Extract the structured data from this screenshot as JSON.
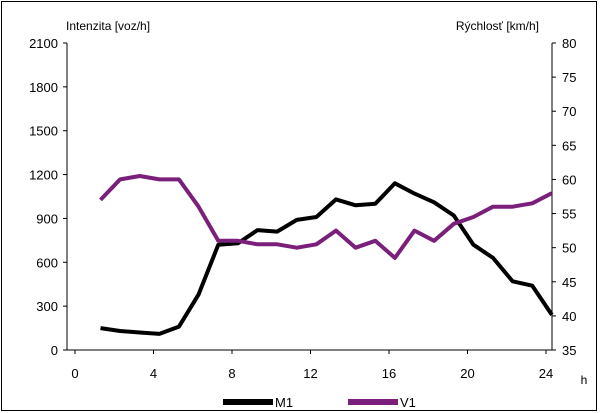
{
  "chart_data": {
    "type": "line",
    "title": "",
    "ylabel_left": "Intenzita [voz/h]",
    "ylabel_right": "Rýchlosť [km/h]",
    "xlabel": "h",
    "xlim": [
      0,
      24
    ],
    "ylim_left": [
      0,
      2100
    ],
    "ylim_right": [
      35,
      80
    ],
    "xticks": [
      0,
      4,
      8,
      12,
      16,
      20,
      24
    ],
    "yticks_left": [
      0,
      300,
      600,
      900,
      1200,
      1500,
      1800,
      2100
    ],
    "yticks_right": [
      35,
      40,
      45,
      50,
      55,
      60,
      65,
      70,
      75,
      80
    ],
    "grid": false,
    "legend_position": "bottom",
    "series": [
      {
        "name": "M1",
        "axis": "left",
        "color": "#000000",
        "x": [
          1.3,
          2.3,
          3.3,
          4.3,
          5.3,
          6.3,
          7.3,
          8.3,
          9.3,
          10.3,
          11.3,
          12.3,
          13.3,
          14.3,
          15.3,
          16.3,
          17.3,
          18.3,
          19.3,
          20.3,
          21.3,
          22.3,
          23.3,
          24.3
        ],
        "values": [
          150,
          130,
          120,
          110,
          160,
          380,
          720,
          730,
          820,
          810,
          890,
          910,
          1030,
          990,
          1000,
          1140,
          1070,
          1010,
          920,
          720,
          630,
          470,
          440,
          240
        ]
      },
      {
        "name": "V1",
        "axis": "right",
        "color": "#7a1f7a",
        "x": [
          1.3,
          2.3,
          3.3,
          4.3,
          5.3,
          6.3,
          7.3,
          8.3,
          9.3,
          10.3,
          11.3,
          12.3,
          13.3,
          14.3,
          15.3,
          16.3,
          17.3,
          18.3,
          19.3,
          20.3,
          21.3,
          22.3,
          23.3,
          24.3
        ],
        "values": [
          57,
          60,
          60.5,
          60,
          60,
          56,
          51,
          51,
          50.5,
          50.5,
          50,
          50.5,
          52.5,
          50,
          51,
          48.5,
          52.5,
          51,
          53.5,
          54.5,
          56,
          56,
          56.5,
          58
        ]
      }
    ]
  }
}
